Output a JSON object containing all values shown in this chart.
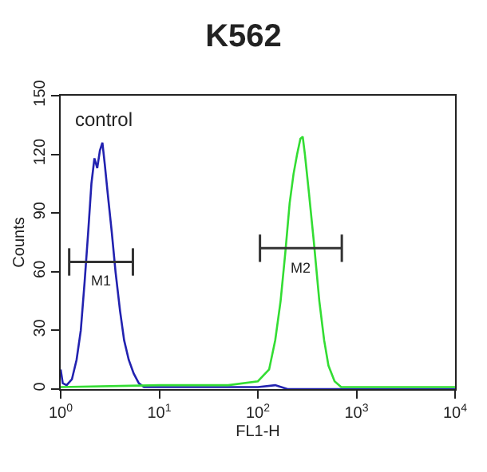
{
  "chart_data": {
    "type": "line",
    "title": "K562",
    "xlabel": "FL1-H",
    "ylabel": "Counts",
    "log": "x",
    "xlim": [
      1,
      10000
    ],
    "ylim": [
      0,
      150
    ],
    "yticks": [
      0,
      30,
      60,
      90,
      120,
      150
    ],
    "xticks": [
      {
        "value": 1,
        "label": "10$^{0}$"
      },
      {
        "value": 10,
        "label": "10$^{1}$"
      },
      {
        "value": 100,
        "label": "10$^{2}$"
      },
      {
        "value": 1000,
        "label": "10$^{3}$"
      },
      {
        "value": 10000,
        "label": "10$^{4}$"
      }
    ],
    "marker": "none",
    "line_style": "solid",
    "series": [
      {
        "color": "#2222b0",
        "x": [
          1.0,
          1.05,
          1.15,
          1.3,
          1.45,
          1.6,
          1.75,
          1.9,
          2.05,
          2.2,
          2.35,
          2.5,
          2.65,
          2.8,
          3.0,
          3.3,
          3.6,
          4.0,
          4.4,
          4.9,
          5.5,
          6.2,
          7,
          10,
          100,
          150,
          200,
          10000
        ],
        "values": [
          10,
          3,
          2,
          5,
          15,
          30,
          55,
          80,
          105,
          118,
          113,
          122,
          126,
          115,
          100,
          80,
          60,
          40,
          25,
          15,
          8,
          3,
          1,
          1,
          1,
          2,
          0,
          0
        ]
      },
      {
        "color": "#33dd33",
        "x": [
          1,
          10,
          50,
          100,
          130,
          150,
          170,
          190,
          210,
          230,
          250,
          270,
          285,
          300,
          330,
          370,
          420,
          470,
          520,
          600,
          700,
          1000,
          10000
        ],
        "values": [
          1,
          2,
          2,
          4,
          10,
          25,
          45,
          70,
          95,
          110,
          120,
          128,
          129,
          120,
          100,
          75,
          45,
          25,
          12,
          4,
          1,
          1,
          1
        ]
      },
      {
        "color": "#333333",
        "x": [
          1.22,
          5.4
        ],
        "values": [
          65,
          65
        ],
        "errors": [
          7,
          7
        ]
      },
      {
        "color": "#333333",
        "x": [
          105,
          710
        ],
        "values": [
          72,
          72
        ],
        "errors": [
          7,
          7
        ]
      }
    ],
    "annotations": [
      "control",
      "M1",
      "M2"
    ]
  }
}
